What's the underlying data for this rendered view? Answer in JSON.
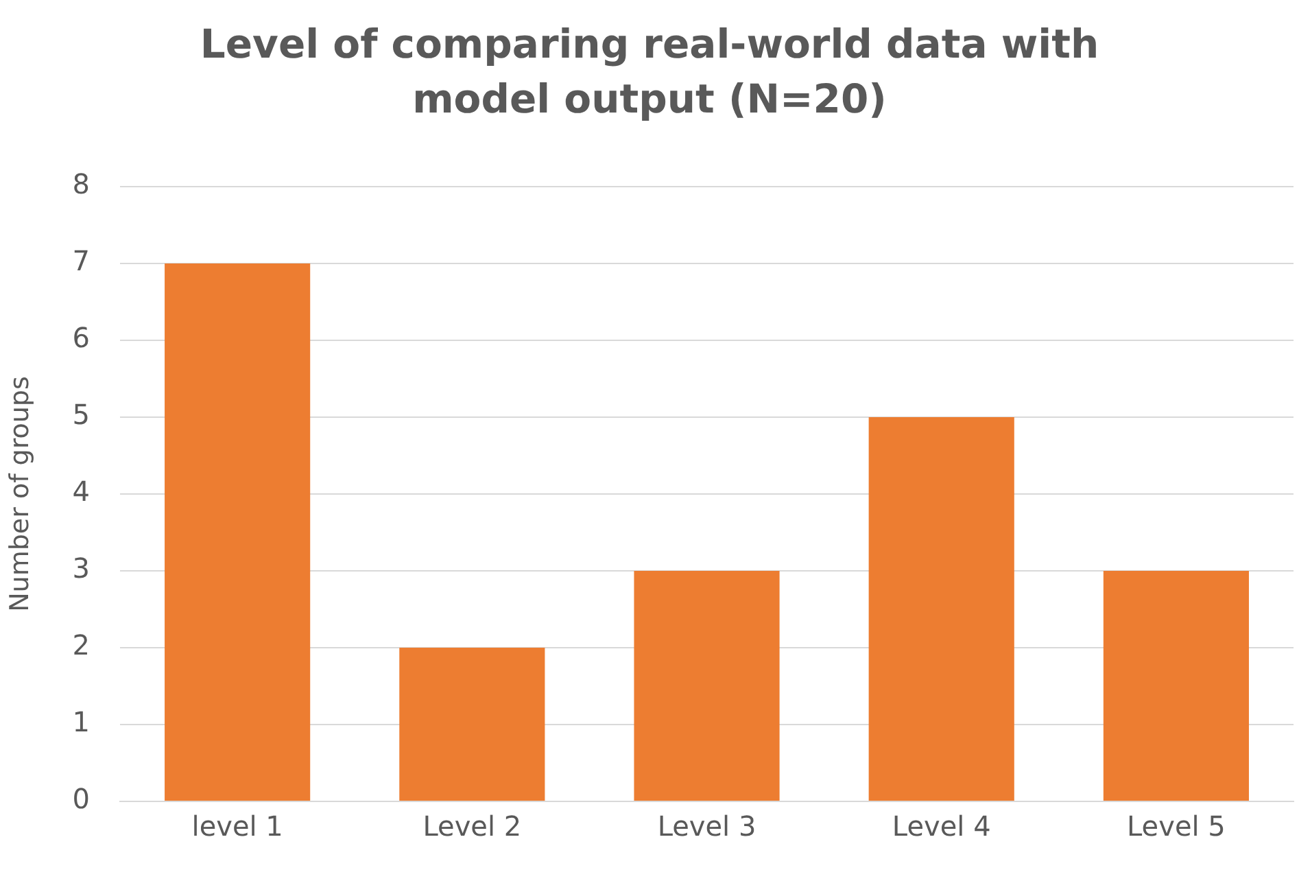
{
  "chart_data": {
    "type": "bar",
    "title": "Level of comparing real-world data with model output (N=20)",
    "ylabel": "Number of groups",
    "categories": [
      "level 1",
      "Level 2",
      "Level 3",
      "Level 4",
      "Level 5"
    ],
    "values": [
      7,
      2,
      3,
      5,
      3
    ],
    "color": "#ed7d31",
    "ylim": [
      0,
      8
    ],
    "yticks": [
      0,
      1,
      2,
      3,
      4,
      5,
      6,
      7,
      8
    ],
    "grid": "y",
    "legend": false
  }
}
